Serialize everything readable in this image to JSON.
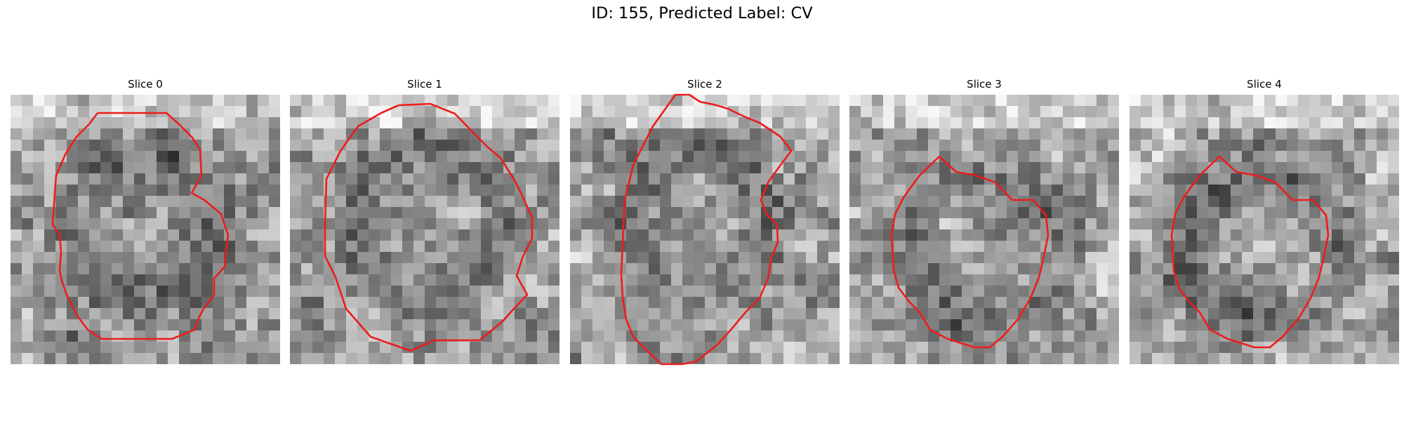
{
  "figure": {
    "title": "ID: 155, Predicted Label: CV",
    "contour_color": "#ee1c1c",
    "colormap": "grayscale",
    "panels": [
      {
        "title": "Slice 0",
        "contour": "ellipse",
        "seed": 11
      },
      {
        "title": "Slice 1",
        "contour": "octagon",
        "seed": 23
      },
      {
        "title": "Slice 2",
        "contour": "slanted",
        "seed": 37
      },
      {
        "title": "Slice 3",
        "contour": "drop",
        "seed": 41
      },
      {
        "title": "Slice 4",
        "contour": "drop",
        "seed": 43
      }
    ]
  }
}
